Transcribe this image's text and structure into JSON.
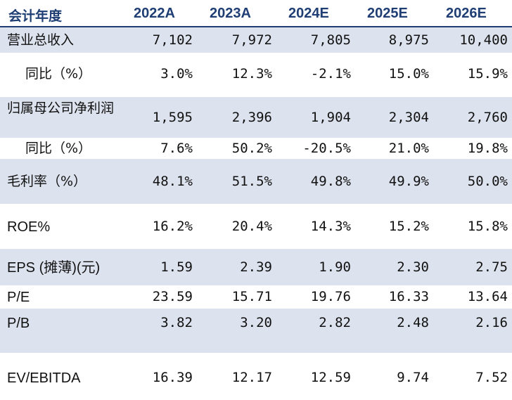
{
  "header": {
    "label": "会计年度",
    "years": [
      "2022A",
      "2023A",
      "2024E",
      "2025E",
      "2026E"
    ]
  },
  "rows": [
    {
      "label": "营业总收入",
      "values": [
        "7,102",
        "7,972",
        "7,805",
        "8,975",
        "10,400"
      ]
    },
    {
      "label": "同比（%）",
      "values": [
        "3.0%",
        "12.3%",
        "-2.1%",
        "15.0%",
        "15.9%"
      ]
    },
    {
      "label": "归属母公司净利润",
      "values": [
        "1,595",
        "2,396",
        "1,904",
        "2,304",
        "2,760"
      ]
    },
    {
      "label": "同比（%）",
      "values": [
        "7.6%",
        "50.2%",
        "-20.5%",
        "21.0%",
        "19.8%"
      ]
    },
    {
      "label": "毛利率（%）",
      "values": [
        "48.1%",
        "51.5%",
        "49.8%",
        "49.9%",
        "50.0%"
      ]
    },
    {
      "label": "ROE%",
      "values": [
        "16.2%",
        "20.4%",
        "14.3%",
        "15.2%",
        "15.8%"
      ]
    },
    {
      "label": "EPS (摊薄)(元)",
      "values": [
        "1.59",
        "2.39",
        "1.90",
        "2.30",
        "2.75"
      ]
    },
    {
      "label": "P/E",
      "values": [
        "23.59",
        "15.71",
        "19.76",
        "16.33",
        "13.64"
      ]
    },
    {
      "label": "P/B",
      "values": [
        "3.82",
        "3.20",
        "2.82",
        "2.48",
        "2.16"
      ]
    },
    {
      "label": "EV/EBITDA",
      "values": [
        "16.39",
        "12.17",
        "12.59",
        "9.74",
        "7.52"
      ]
    }
  ]
}
